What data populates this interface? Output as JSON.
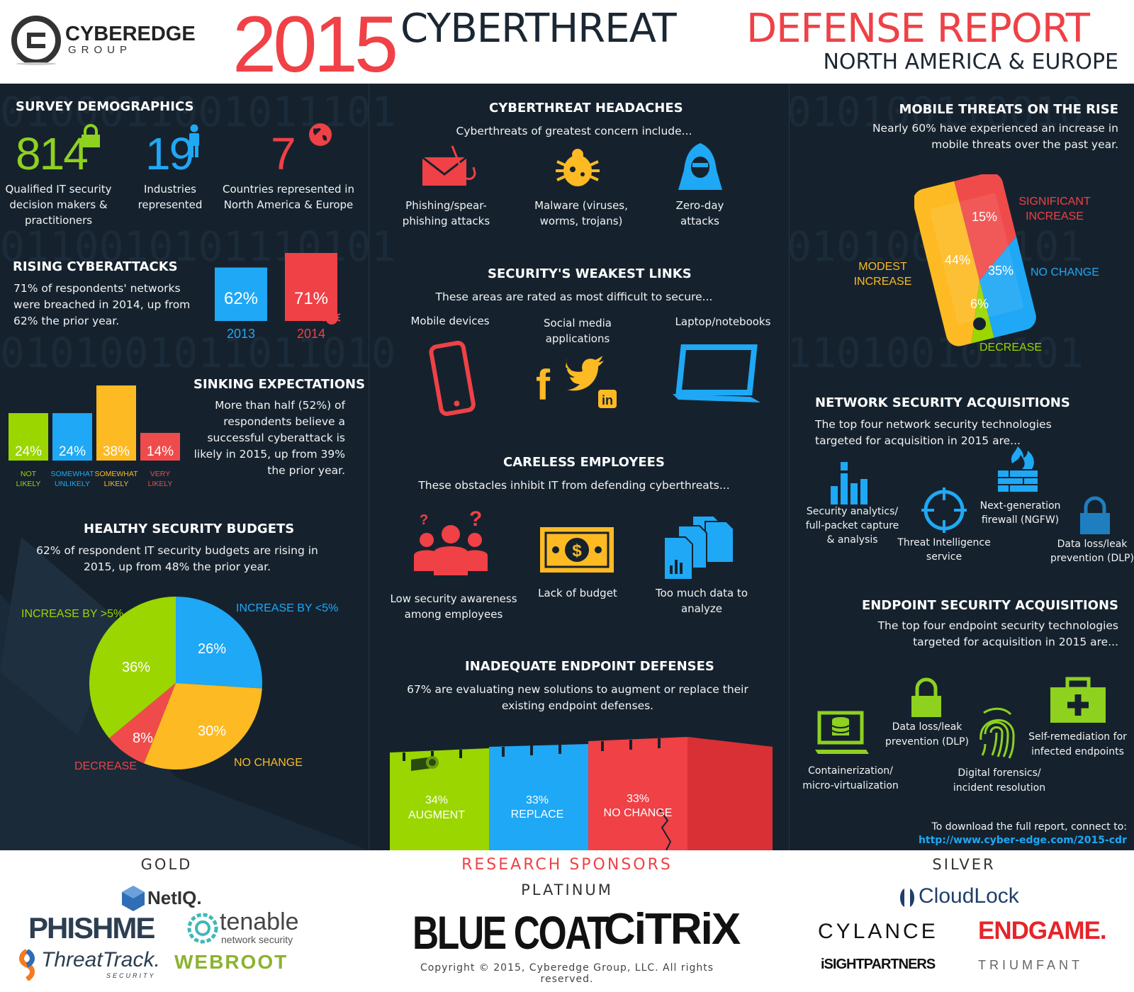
{
  "header": {
    "brand_top": "CYBEREDGE",
    "brand_bottom": "GROUP",
    "year": "2015",
    "title_part1": "CYBERTHREAT",
    "title_part2": "DEFENSE REPORT",
    "subtitle": "NORTH AMERICA & EUROPE"
  },
  "colors": {
    "red": "#f04b4b",
    "blue": "#1fa8f5",
    "green": "#9bd600",
    "yellow": "#fdba23",
    "dark": "#15222e"
  },
  "demographics": {
    "title": "SURVEY DEMOGRAPHICS",
    "items": [
      {
        "value": "814",
        "label": "Qualified IT security decision makers & practitioners",
        "icon": "lock-icon"
      },
      {
        "value": "19",
        "label": "Industries represented",
        "icon": "person-icon"
      },
      {
        "value": "7",
        "label": "Countries represented in North America & Europe",
        "icon": "globe-icon"
      }
    ]
  },
  "rising": {
    "title": "RISING CYBERATTACKS",
    "text": "71% of respondents' networks were breached in 2014, up from 62% the prior year.",
    "bars": [
      {
        "year": "2013",
        "label": "62%",
        "value": 62
      },
      {
        "year": "2014",
        "label": "71%",
        "value": 71
      }
    ]
  },
  "sinking": {
    "title": "SINKING EXPECTATIONS",
    "text": "More than half (52%) of respondents believe a successful cyberattack is likely in 2015, up from 39% the prior year.",
    "bars": [
      {
        "label": "24%",
        "value": 24,
        "cat1": "NOT",
        "cat2": "LIKELY"
      },
      {
        "label": "24%",
        "value": 24,
        "cat1": "SOMEWHAT",
        "cat2": "UNLIKELY"
      },
      {
        "label": "38%",
        "value": 38,
        "cat1": "SOMEWHAT",
        "cat2": "LIKELY"
      },
      {
        "label": "14%",
        "value": 14,
        "cat1": "VERY",
        "cat2": "LIKELY"
      }
    ]
  },
  "budgets": {
    "title": "HEALTHY SECURITY BUDGETS",
    "text": "62% of respondent IT security budgets are rising in 2015, up from 48% the prior year.",
    "slices": [
      {
        "name": "INCREASE BY <5%",
        "label": "26%",
        "value": 26
      },
      {
        "name": "NO CHANGE",
        "label": "30%",
        "value": 30
      },
      {
        "name": "DECREASE",
        "label": "8%",
        "value": 8
      },
      {
        "name": "INCREASE BY >5%",
        "label": "36%",
        "value": 36
      }
    ]
  },
  "headaches": {
    "title": "CYBERTHREAT HEADACHES",
    "intro": "Cyberthreats of greatest concern include...",
    "items": [
      {
        "label": "Phishing/spear-phishing attacks",
        "icon": "phishing-icon"
      },
      {
        "label": "Malware (viruses, worms, trojans)",
        "icon": "bug-icon"
      },
      {
        "label": "Zero-day attacks",
        "icon": "hooded-hacker-icon"
      }
    ]
  },
  "weakest": {
    "title": "SECURITY'S WEAKEST LINKS",
    "intro": "These areas are rated as most difficult to secure...",
    "items": [
      {
        "label": "Mobile devices",
        "icon": "smartphone-icon"
      },
      {
        "label": "Social media applications",
        "icon": "social-media-icon"
      },
      {
        "label": "Laptop/notebooks",
        "icon": "laptop-icon"
      }
    ]
  },
  "careless": {
    "title": "CARELESS EMPLOYEES",
    "intro": "These obstacles inhibit IT from defending cyberthreats...",
    "items": [
      {
        "label": "Low security awareness among employees",
        "icon": "confused-people-icon"
      },
      {
        "label": "Lack of budget",
        "icon": "dollar-bill-icon"
      },
      {
        "label": "Too much data to analyze",
        "icon": "documents-icon"
      }
    ]
  },
  "endpoint_def": {
    "title": "INADEQUATE ENDPOINT DEFENSES",
    "text": "67% are evaluating new solutions to augment or replace their existing endpoint defenses.",
    "walls": [
      {
        "pct": "34%",
        "label": "AUGMENT",
        "value": 34
      },
      {
        "pct": "33%",
        "label": "REPLACE",
        "value": 33
      },
      {
        "pct": "33%",
        "label": "NO CHANGE",
        "value": 33
      }
    ]
  },
  "mobile": {
    "title": "MOBILE THREATS ON THE RISE",
    "text": "Nearly 60% have experienced an increase in mobile threats over the past year.",
    "slices": [
      {
        "name": "SIGNIFICANT INCREASE",
        "label": "15%",
        "value": 15
      },
      {
        "name": "NO CHANGE",
        "label": "35%",
        "value": 35
      },
      {
        "name": "DECREASE",
        "label": "6%",
        "value": 6
      },
      {
        "name": "MODEST INCREASE",
        "label": "44%",
        "value": 44
      }
    ]
  },
  "network_acq": {
    "title": "NETWORK SECURITY ACQUISITIONS",
    "text": "The top four network security technologies targeted for acquisition in 2015 are...",
    "items": [
      {
        "label": "Security analytics/ full-packet capture & analysis",
        "icon": "bar-chart-icon"
      },
      {
        "label": "Threat Intelligence service",
        "icon": "crosshair-icon"
      },
      {
        "label": "Next-generation firewall (NGFW)",
        "icon": "firewall-icon"
      },
      {
        "label": "Data loss/leak prevention (DLP)",
        "icon": "lock-icon"
      }
    ]
  },
  "endpoint_acq": {
    "title": "ENDPOINT SECURITY ACQUISITIONS",
    "text": "The top four endpoint security technologies targeted for acquisition in 2015 are...",
    "items": [
      {
        "label": "Containerization/ micro-virtualization",
        "icon": "container-icon"
      },
      {
        "label": "Data loss/leak prevention (DLP)",
        "icon": "lock-icon"
      },
      {
        "label": "Digital forensics/ incident resolution",
        "icon": "fingerprint-icon"
      },
      {
        "label": "Self-remediation for infected endpoints",
        "icon": "first-aid-icon"
      }
    ]
  },
  "download": {
    "text": "To download the full report, connect to:",
    "url": "http://www.cyber-edge.com/2015-cdr"
  },
  "sponsors": {
    "gold_title": "GOLD",
    "research_title": "RESEARCH SPONSORS",
    "platinum_title": "PLATINUM",
    "silver_title": "SILVER",
    "gold": [
      "NetIQ.",
      "PHISHME",
      "tenable",
      "network security",
      "ThreatTrack.",
      "SECURITY",
      "WEBROOT"
    ],
    "platinum": [
      "BLUE COAT",
      "CiTRiX"
    ],
    "silver": [
      "CloudLock",
      "CYLANCE",
      "ENDGAME.",
      "iSIGHTPARTNERS",
      "TRIUMFANT"
    ],
    "copyright": "Copyright © 2015, Cyberedge Group, LLC. All rights reserved."
  }
}
